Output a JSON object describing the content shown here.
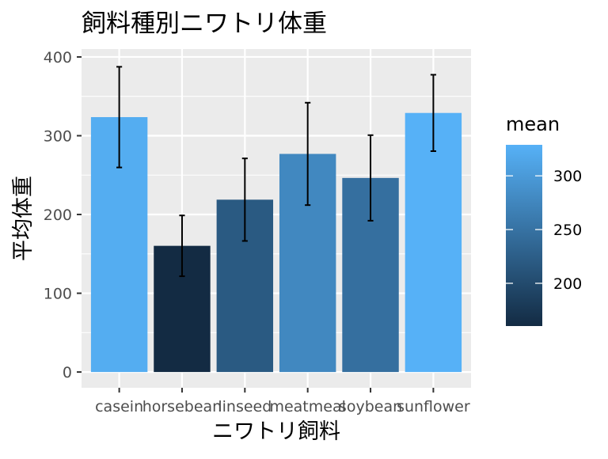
{
  "chart_data": {
    "type": "bar",
    "title": "飼料種別ニワトリ体重",
    "xlabel": "ニワトリ飼料",
    "ylabel": "平均体重",
    "categories": [
      "casein",
      "horsebean",
      "linseed",
      "meatmeal",
      "soybean",
      "sunflower"
    ],
    "values": [
      323.6,
      160.2,
      218.8,
      276.9,
      246.4,
      328.9
    ],
    "error_low": [
      259.7,
      121.6,
      166.4,
      211.9,
      192.1,
      280.4
    ],
    "error_high": [
      387.5,
      198.8,
      271.2,
      341.9,
      300.7,
      377.4
    ],
    "ylim": [
      -20,
      410
    ],
    "yticks": [
      0,
      100,
      200,
      300,
      400
    ],
    "grid": true,
    "panel_background": "#ebebeb",
    "legend": {
      "title": "mean",
      "position": "right",
      "ticks": [
        200,
        250,
        300
      ],
      "range": [
        160.2,
        328.9
      ],
      "low_color": "#132b43",
      "high_color": "#56b1f7"
    }
  }
}
